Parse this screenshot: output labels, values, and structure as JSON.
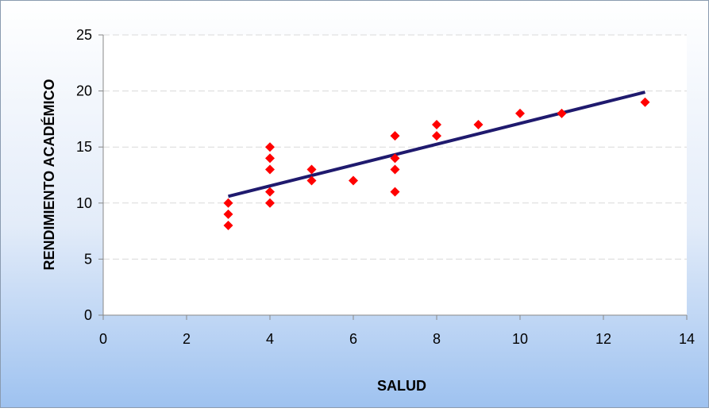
{
  "chart_data": {
    "type": "scatter",
    "x_label": "SALUD",
    "y_label": "RENDIMIENTO ACADÉMICO",
    "series": [
      {
        "type": "scatter",
        "color": "#ff0000",
        "x": [
          3,
          3,
          3,
          4,
          4,
          4,
          4,
          4,
          5,
          5,
          6,
          7,
          7,
          7,
          7,
          8,
          8,
          9,
          10,
          11,
          13
        ],
        "values": [
          10,
          9,
          8,
          15,
          14,
          13,
          11,
          10,
          13,
          12,
          12,
          16,
          14,
          13,
          11,
          17,
          16,
          17,
          18,
          18,
          19
        ]
      },
      {
        "type": "line",
        "color": "#1f1a6e",
        "x": [
          3,
          13
        ],
        "values": [
          10.6,
          19.9
        ]
      }
    ],
    "xlim": [
      0,
      14
    ],
    "xticks": [
      0,
      2,
      4,
      6,
      8,
      10,
      12,
      14
    ],
    "ylim": [
      0,
      25
    ],
    "yticks": [
      0,
      5,
      10,
      15,
      20,
      25
    ],
    "grid": true
  }
}
